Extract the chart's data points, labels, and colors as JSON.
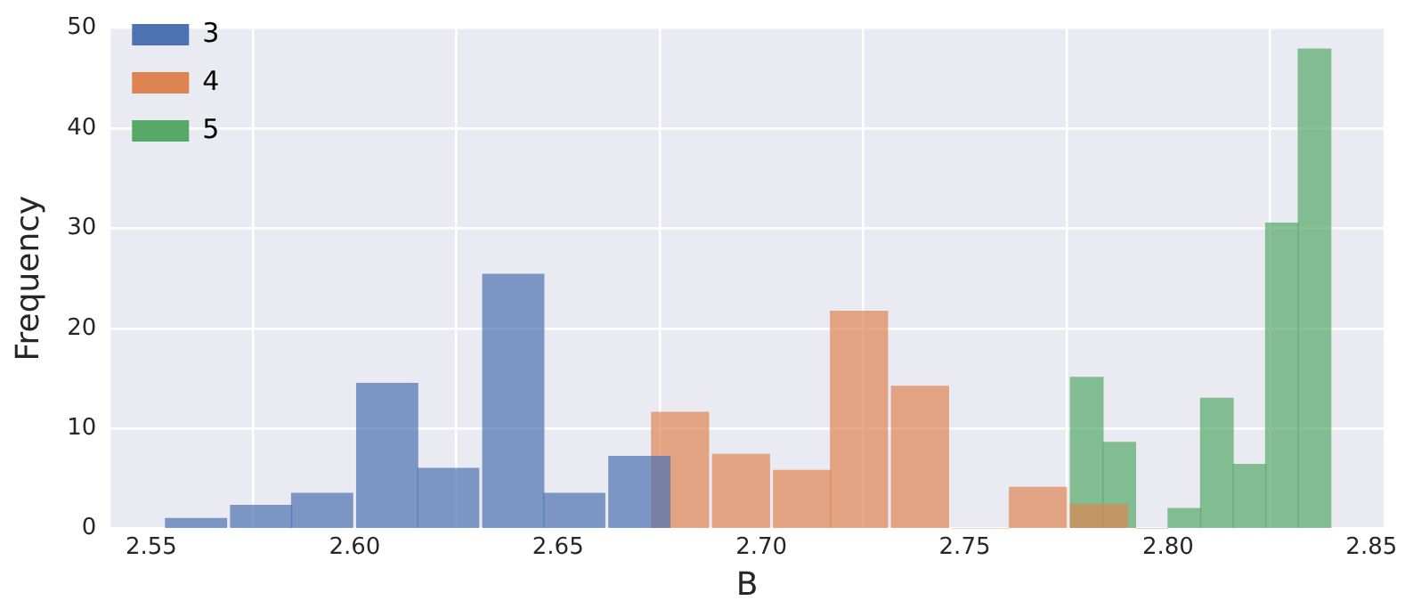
{
  "chart_data": {
    "type": "bar",
    "xlabel": "B",
    "ylabel": "Frequency",
    "series": [
      {
        "name": "3",
        "color": "#4c72b0",
        "x": [
          2.561,
          2.577,
          2.592,
          2.608,
          2.623,
          2.639,
          2.654,
          2.67
        ],
        "values": [
          1,
          2.3,
          3.5,
          14.5,
          6,
          25.4,
          3.5,
          7.2
        ]
      },
      {
        "name": "4",
        "color": "#dd8452",
        "x": [
          2.68,
          2.695,
          2.71,
          2.724,
          2.739,
          2.754,
          2.768,
          2.783
        ],
        "values": [
          11.6,
          7.4,
          5.8,
          21.7,
          14.2,
          0,
          4.1,
          2.4
        ]
      },
      {
        "name": "5",
        "color": "#55a868",
        "x": [
          2.78,
          2.788,
          2.796,
          2.804,
          2.812,
          2.82,
          2.828,
          2.836
        ],
        "values": [
          15.1,
          8.6,
          0,
          2,
          13,
          6.4,
          30.5,
          47.9
        ]
      }
    ],
    "xlim": [
      2.54,
      2.853
    ],
    "xticks": [
      2.55,
      {
        "value": 2.6,
        "label": "2.60"
      },
      2.65,
      {
        "value": 2.7,
        "label": "2.70"
      },
      2.75,
      {
        "value": 2.8,
        "label": "2.80"
      },
      2.85
    ],
    "ylim": [
      0,
      50
    ],
    "yticks": [
      0,
      10,
      20,
      30,
      40,
      50
    ],
    "grid": true,
    "legend": "top left"
  }
}
